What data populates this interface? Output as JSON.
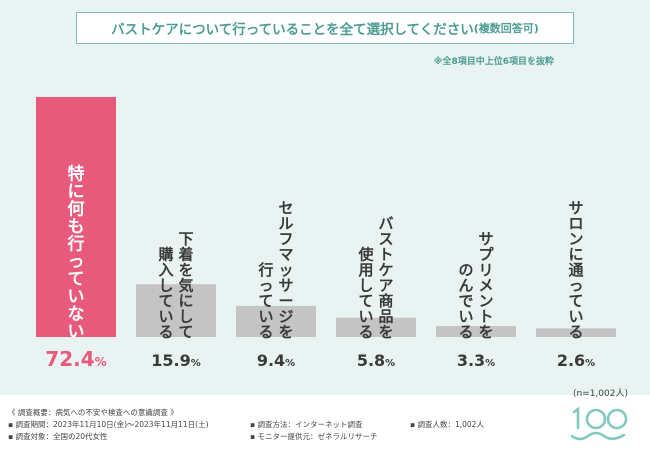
{
  "title": {
    "main": "バストケアについて行っていることを全て選択してください",
    "paren": "(複数回答可)"
  },
  "note": "※全8項目中上位6項目を抜粋",
  "sample_note": "(n=1,002人)",
  "chart_data": {
    "type": "bar",
    "title": "バストケアについて行っていることを全て選択してください(複数回答可)",
    "unit": "%",
    "categories": [
      [
        "特に何も行っていない"
      ],
      [
        "下着を気にして",
        "購入している"
      ],
      [
        "セルフマッサージを",
        "行っている"
      ],
      [
        "バストケア商品を",
        "使用している"
      ],
      [
        "サプリメントを",
        "のんでいる"
      ],
      [
        "サロンに通っている"
      ]
    ],
    "values": [
      72.4,
      15.9,
      9.4,
      5.8,
      3.3,
      2.6
    ],
    "value_labels": [
      "72.4",
      "15.9",
      "9.4",
      "5.8",
      "3.3",
      "2.6"
    ],
    "highlight_color": "#e85a7c",
    "bar_color": "#c4c4c4",
    "ylim": [
      0,
      100
    ]
  },
  "footer": {
    "overview": "《 調査概要：病気への不安や検査への意識調査 》",
    "period": "▪ 調査期間：2023年11月10日(金)〜2023年11月11日(土)",
    "target": "▪ 調査対象：全国の20代女性",
    "method": "▪ 調査方法：インターネット調査",
    "provider": "▪ モニター提供元：ゼネラルリサーチ",
    "count": "▪ 調査人数：1,002人"
  },
  "logo": {
    "text": "100",
    "icon": "100-logo-icon",
    "color": "#7fc8c0"
  }
}
